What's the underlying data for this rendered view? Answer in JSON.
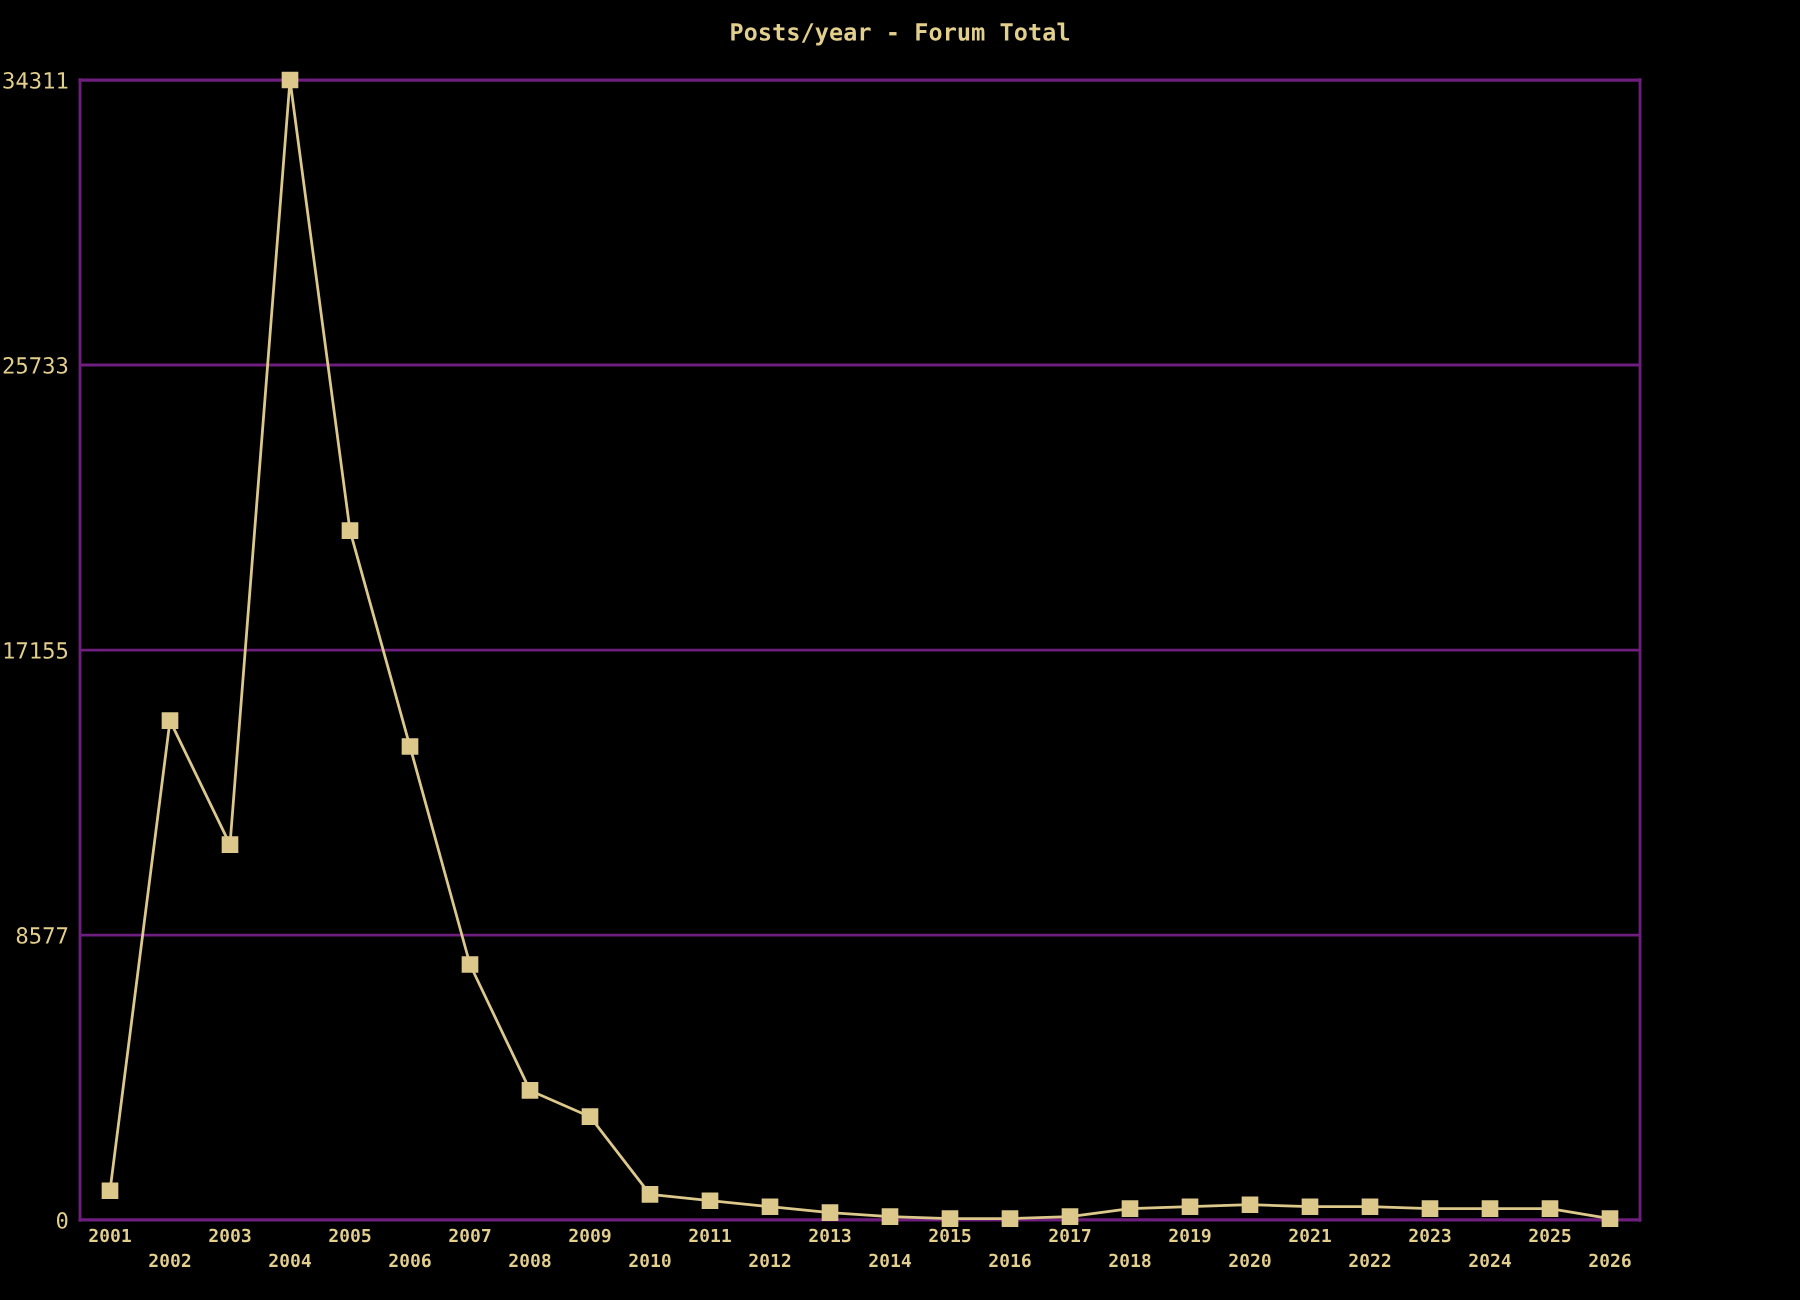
{
  "chart_data": {
    "type": "line",
    "title": "Posts/year - Forum Total",
    "categories": [
      "2001",
      "2002",
      "2003",
      "2004",
      "2005",
      "2006",
      "2007",
      "2008",
      "2009",
      "2010",
      "2011",
      "2012",
      "2013",
      "2014",
      "2015",
      "2016",
      "2017",
      "2018",
      "2019",
      "2020",
      "2021",
      "2022",
      "2023",
      "2024",
      "2025",
      "2026"
    ],
    "values": [
      880,
      15030,
      11300,
      34311,
      20750,
      14250,
      7690,
      3900,
      3110,
      770,
      580,
      400,
      220,
      100,
      40,
      40,
      100,
      340,
      400,
      460,
      400,
      400,
      340,
      340,
      340,
      40
    ],
    "color": "#dcc88a",
    "ylim": [
      0,
      34311
    ],
    "yticks": [
      0,
      8577,
      17155,
      25733,
      34311
    ],
    "grid": "y",
    "marker": "square",
    "line_style": "solid"
  }
}
